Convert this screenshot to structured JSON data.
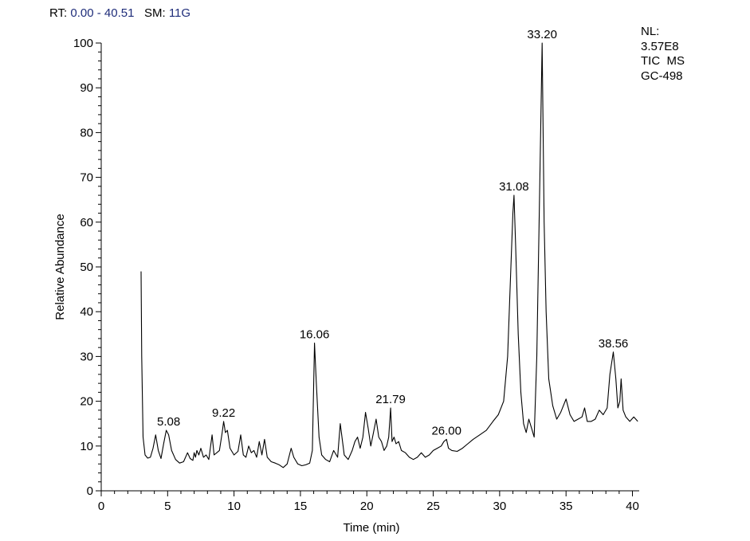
{
  "header": {
    "rt_label": "RT:",
    "rt_value": "0.00 - 40.51",
    "sm_label": "SM:",
    "sm_value": "11G"
  },
  "info": {
    "nl_label": "NL:",
    "nl_value": "3.57E8",
    "scan": "TIC  MS",
    "sample": "GC-498"
  },
  "chart_data": {
    "type": "line",
    "title": "",
    "xlabel": "Time (min)",
    "ylabel": "Relative Abundance",
    "xlim": [
      0,
      40.51
    ],
    "ylim": [
      0,
      100
    ],
    "x_ticks": [
      0,
      5,
      10,
      15,
      20,
      25,
      30,
      35,
      40
    ],
    "y_ticks": [
      0,
      10,
      20,
      30,
      40,
      50,
      60,
      70,
      80,
      90,
      100
    ],
    "grid": false,
    "legend": "none",
    "line_color": "#000000",
    "peak_labels": [
      {
        "x": 5.08,
        "y": 13.5,
        "label": "5.08"
      },
      {
        "x": 9.22,
        "y": 15.5,
        "label": "9.22"
      },
      {
        "x": 16.06,
        "y": 33,
        "label": "16.06"
      },
      {
        "x": 21.79,
        "y": 18.5,
        "label": "21.79"
      },
      {
        "x": 26.0,
        "y": 11.5,
        "label": "26.00"
      },
      {
        "x": 31.08,
        "y": 66,
        "label": "31.08"
      },
      {
        "x": 33.2,
        "y": 100,
        "label": "33.20"
      },
      {
        "x": 38.56,
        "y": 31,
        "label": "38.56"
      }
    ],
    "series": [
      {
        "x": [
          3.0,
          3.05,
          3.15,
          3.3,
          3.5,
          3.7,
          3.9,
          4.1,
          4.3,
          4.5,
          4.7,
          4.9,
          5.08,
          5.3,
          5.6,
          5.9,
          6.2,
          6.5,
          6.7,
          6.9,
          7.0,
          7.1,
          7.2,
          7.35,
          7.5,
          7.7,
          7.9,
          8.1,
          8.35,
          8.5,
          8.7,
          8.9,
          9.1,
          9.22,
          9.35,
          9.5,
          9.7,
          10.0,
          10.3,
          10.5,
          10.7,
          10.9,
          11.1,
          11.3,
          11.5,
          11.7,
          11.9,
          12.1,
          12.3,
          12.5,
          12.8,
          13.1,
          13.4,
          13.7,
          14.0,
          14.3,
          14.5,
          14.8,
          15.1,
          15.4,
          15.7,
          15.9,
          16.06,
          16.2,
          16.4,
          16.6,
          16.9,
          17.2,
          17.5,
          17.8,
          18.0,
          18.3,
          18.6,
          18.9,
          19.1,
          19.3,
          19.5,
          19.7,
          19.9,
          20.1,
          20.3,
          20.5,
          20.7,
          20.9,
          21.1,
          21.3,
          21.5,
          21.65,
          21.79,
          21.9,
          22.05,
          22.2,
          22.4,
          22.6,
          22.9,
          23.2,
          23.5,
          23.8,
          24.1,
          24.4,
          24.7,
          25.0,
          25.3,
          25.6,
          25.8,
          26.0,
          26.15,
          26.4,
          26.8,
          27.2,
          27.6,
          28.0,
          28.5,
          29.0,
          29.5,
          29.9,
          30.3,
          30.6,
          30.85,
          31.0,
          31.08,
          31.2,
          31.4,
          31.6,
          31.8,
          32.0,
          32.2,
          32.4,
          32.6,
          32.8,
          33.0,
          33.2,
          33.35,
          33.5,
          33.7,
          34.0,
          34.3,
          34.6,
          35.0,
          35.3,
          35.6,
          35.9,
          36.2,
          36.4,
          36.6,
          36.9,
          37.2,
          37.5,
          37.8,
          38.1,
          38.3,
          38.56,
          38.75,
          38.9,
          39.05,
          39.15,
          39.3,
          39.5,
          39.8,
          40.1,
          40.4
        ],
        "values": [
          49,
          30,
          12,
          8,
          7.3,
          7.5,
          9.5,
          12.5,
          9,
          7.2,
          10.5,
          13.5,
          12.5,
          9,
          7,
          6.2,
          6.5,
          8.5,
          7.2,
          6.8,
          8.5,
          7.5,
          9,
          8,
          9.5,
          7.5,
          8,
          7,
          12.5,
          8,
          8.5,
          9,
          12.8,
          15.5,
          13,
          13.5,
          9.5,
          8,
          8.8,
          12.5,
          8,
          7.5,
          10,
          8.5,
          9,
          7.5,
          11,
          8,
          11.5,
          7.5,
          6.5,
          6.2,
          5.8,
          5.2,
          6.0,
          9.5,
          7.5,
          6.0,
          5.6,
          5.8,
          6.2,
          9,
          33,
          24,
          12,
          8,
          7,
          6.5,
          9,
          7.5,
          15,
          8,
          7,
          9,
          11,
          12,
          9.5,
          12,
          17.5,
          14,
          10,
          13,
          16,
          12,
          11,
          9,
          10,
          12,
          18.5,
          11,
          12,
          10.5,
          11,
          9,
          8.5,
          7.5,
          7,
          7.5,
          8.5,
          7.5,
          8,
          9,
          9.5,
          10,
          11,
          11.5,
          9.5,
          9,
          8.8,
          9.5,
          10.5,
          11.5,
          12.5,
          13.5,
          15.5,
          17,
          20,
          30,
          50,
          62,
          66,
          55,
          35,
          22,
          15,
          13,
          16,
          14,
          12,
          30,
          65,
          100,
          60,
          40,
          25,
          19,
          16,
          17.5,
          20.5,
          17,
          15.5,
          16,
          16.5,
          18.5,
          15.5,
          15.5,
          16,
          18,
          17,
          18.5,
          26,
          31,
          25,
          18.5,
          20,
          25,
          18,
          16.5,
          15.5,
          16.5,
          15.5
        ]
      }
    ]
  }
}
